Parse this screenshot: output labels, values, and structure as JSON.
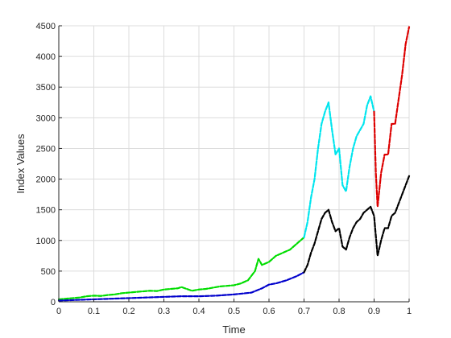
{
  "chart_data": {
    "type": "line",
    "title": "",
    "xlabel": "Time",
    "ylabel": "Index Values",
    "xlim": [
      0,
      1
    ],
    "ylim": [
      0,
      4500
    ],
    "xticks": [
      0,
      0.1,
      0.2,
      0.3,
      0.4,
      0.5,
      0.6,
      0.7,
      0.8,
      0.9,
      1
    ],
    "xtick_labels": [
      "0",
      "0.1",
      "0.2",
      "0.3",
      "0.4",
      "0.5",
      "0.6",
      "0.7",
      "0.8",
      "0.9",
      "1"
    ],
    "yticks": [
      0,
      500,
      1000,
      1500,
      2000,
      2500,
      3000,
      3500,
      4000,
      4500
    ],
    "ytick_labels": [
      "0",
      "500",
      "1000",
      "1500",
      "2000",
      "2500",
      "3000",
      "3500",
      "4000",
      "4500"
    ],
    "grid": true,
    "legend": "none",
    "series": [
      {
        "color": "#00dd00",
        "style": "dashed",
        "x": [
          0,
          0.02,
          0.04,
          0.06,
          0.08,
          0.1,
          0.12,
          0.14,
          0.16,
          0.18,
          0.2,
          0.22,
          0.24,
          0.26,
          0.28,
          0.3,
          0.32,
          0.34,
          0.35,
          0.36,
          0.38,
          0.4,
          0.42,
          0.44,
          0.46,
          0.48,
          0.5,
          0.52,
          0.54,
          0.56,
          0.57,
          0.58,
          0.6,
          0.62,
          0.64,
          0.66,
          0.68,
          0.7
        ],
        "y": [
          40,
          50,
          60,
          70,
          90,
          100,
          95,
          110,
          120,
          140,
          150,
          160,
          170,
          180,
          175,
          200,
          210,
          220,
          240,
          220,
          180,
          200,
          210,
          230,
          250,
          260,
          270,
          300,
          350,
          500,
          700,
          600,
          650,
          750,
          800,
          850,
          950,
          1050
        ]
      },
      {
        "color": "#0000cc",
        "style": "dashed",
        "x": [
          0,
          0.05,
          0.1,
          0.15,
          0.2,
          0.25,
          0.3,
          0.35,
          0.4,
          0.45,
          0.5,
          0.55,
          0.58,
          0.6,
          0.62,
          0.65,
          0.68,
          0.7
        ],
        "y": [
          20,
          30,
          40,
          50,
          60,
          70,
          80,
          90,
          90,
          100,
          120,
          150,
          220,
          280,
          300,
          350,
          420,
          480
        ]
      },
      {
        "color": "#00e5ee",
        "style": "dashed",
        "x": [
          0.7,
          0.71,
          0.72,
          0.73,
          0.74,
          0.75,
          0.76,
          0.77,
          0.78,
          0.79,
          0.8,
          0.81,
          0.82,
          0.83,
          0.84,
          0.85,
          0.86,
          0.87,
          0.88,
          0.89,
          0.9
        ],
        "y": [
          1050,
          1300,
          1700,
          2000,
          2500,
          2900,
          3100,
          3250,
          2800,
          2400,
          2500,
          1900,
          1800,
          2200,
          2500,
          2700,
          2800,
          2900,
          3200,
          3350,
          3100
        ]
      },
      {
        "color": "#000000",
        "style": "dashed",
        "x": [
          0.7,
          0.71,
          0.72,
          0.73,
          0.74,
          0.75,
          0.76,
          0.77,
          0.78,
          0.79,
          0.8,
          0.81,
          0.82,
          0.83,
          0.84,
          0.85,
          0.86,
          0.87,
          0.88,
          0.89,
          0.9,
          0.91,
          0.92,
          0.93,
          0.94,
          0.95,
          0.96,
          0.97,
          0.98,
          0.99,
          1.0
        ],
        "y": [
          480,
          600,
          800,
          950,
          1150,
          1350,
          1450,
          1500,
          1300,
          1150,
          1200,
          900,
          850,
          1050,
          1200,
          1300,
          1350,
          1450,
          1500,
          1550,
          1400,
          750,
          1000,
          1200,
          1200,
          1400,
          1450,
          1600,
          1750,
          1900,
          2050
        ]
      },
      {
        "color": "#dd0000",
        "style": "dashed",
        "x": [
          0.9,
          0.905,
          0.91,
          0.92,
          0.93,
          0.94,
          0.95,
          0.96,
          0.97,
          0.98,
          0.99,
          1.0
        ],
        "y": [
          3100,
          2100,
          1550,
          2100,
          2400,
          2400,
          2900,
          2900,
          3300,
          3700,
          4200,
          4480
        ]
      }
    ]
  }
}
